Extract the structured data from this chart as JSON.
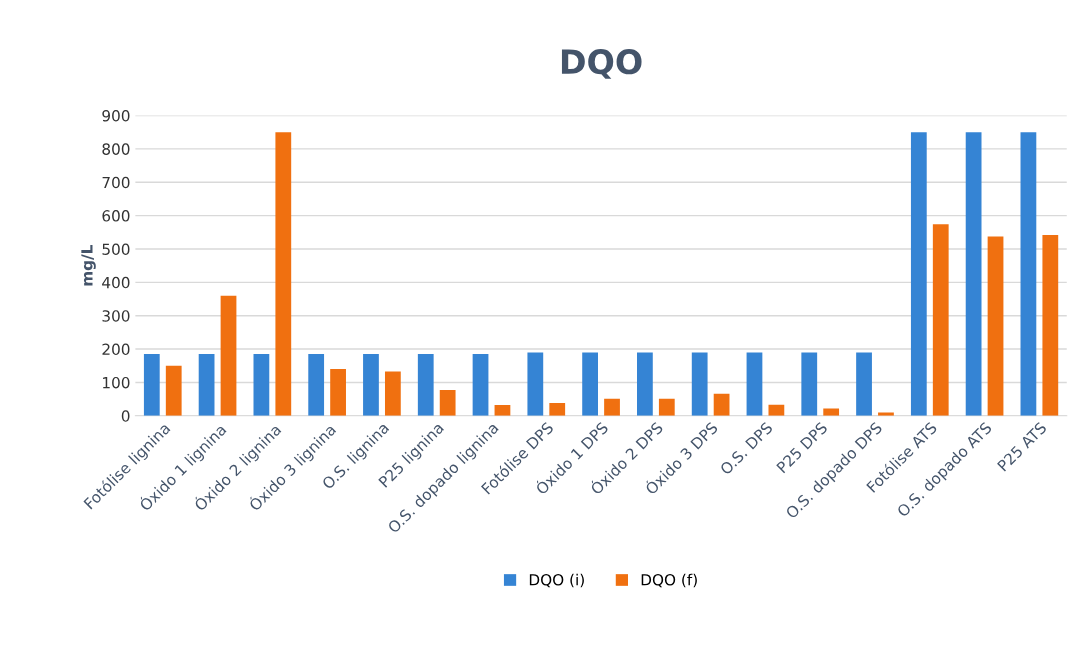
{
  "chart_data": {
    "type": "bar",
    "title": "DQO",
    "ylabel": "mg/L",
    "categories": [
      "Fotólise lignina",
      "Óxido 1 lignina",
      "Óxido 2 lignina",
      "Óxido 3 lignina",
      "O.S. lignina",
      "P25 lignina",
      "O.S. dopado lignina",
      "Fotólise DPS",
      "Óxido 1 DPS",
      "Óxido 2 DPS",
      "Óxido 3 DPS",
      "O.S. DPS",
      "P25 DPS",
      "O.S. dopado DPS",
      "Fotólise ATS",
      "O.S. dopado ATS",
      "P25 ATS"
    ],
    "series": [
      {
        "name": "DQO (i)",
        "color": "#3584d4",
        "values": [
          185,
          185,
          185,
          185,
          185,
          185,
          185,
          190,
          190,
          190,
          190,
          190,
          190,
          190,
          850,
          850,
          850
        ]
      },
      {
        "name": "DQO (f)",
        "color": "#f07010",
        "values": [
          150,
          360,
          850,
          140,
          133,
          77,
          32,
          38,
          51,
          51,
          66,
          33,
          22,
          10,
          574,
          537,
          542
        ]
      }
    ],
    "ylim": [
      0,
      900
    ],
    "yticks": [
      0,
      100,
      200,
      300,
      400,
      500,
      600,
      700,
      800,
      900
    ],
    "grid": "y",
    "legend": "bottom"
  }
}
